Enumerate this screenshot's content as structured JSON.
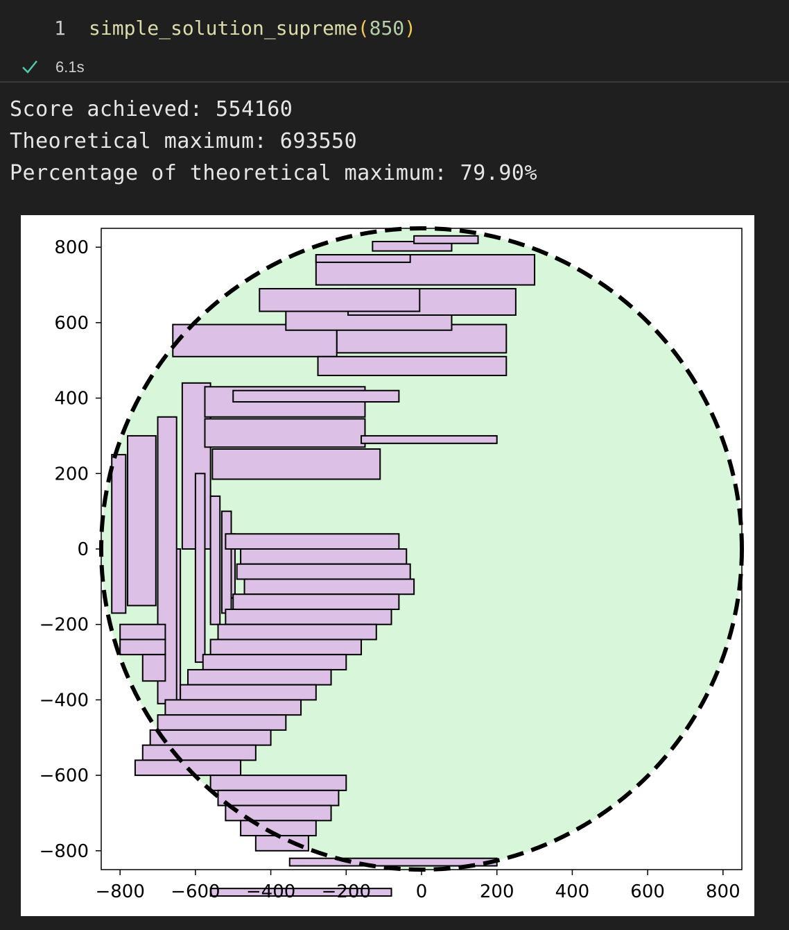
{
  "cell": {
    "line_number": "1",
    "function_name": "simple_solution_supreme",
    "open_paren": "(",
    "argument": "850",
    "close_paren": ")",
    "status_icon": "checkmark-icon",
    "execution_time": "6.1s"
  },
  "output": {
    "lines": [
      "Score achieved: 554160",
      "Theoretical maximum: 693550",
      "Percentage of theoretical maximum: 79.90%"
    ]
  },
  "colors": {
    "background": "#1f1f1f",
    "rect_fill": "#dcc0e6",
    "circle_fill": "#d8f7da",
    "check": "#4ec9b0"
  },
  "chart_data": {
    "type": "scatter",
    "title": "",
    "xlabel": "",
    "ylabel": "",
    "xlim": [
      -850,
      850
    ],
    "ylim": [
      -850,
      850
    ],
    "x_ticks": [
      -800,
      -600,
      -400,
      -200,
      0,
      200,
      400,
      600,
      800
    ],
    "y_ticks": [
      -800,
      -600,
      -400,
      -200,
      0,
      200,
      400,
      600,
      800
    ],
    "circle": {
      "center": [
        0,
        0
      ],
      "radius": 850,
      "style": "dashed"
    },
    "grid": false,
    "legend": "none",
    "note_rects": "rectangles as [x0, y0, x1, y1] in data units",
    "rects": [
      [
        -635,
        0,
        -560,
        440
      ],
      [
        -780,
        -150,
        -705,
        300
      ],
      [
        -822,
        -170,
        -785,
        250
      ],
      [
        -600,
        -300,
        -575,
        200
      ],
      [
        -560,
        -200,
        -535,
        140
      ],
      [
        -530,
        -170,
        -505,
        100
      ],
      [
        -505,
        -130,
        -495,
        40
      ],
      [
        -675,
        -450,
        -640,
        0
      ],
      [
        -700,
        -410,
        -650,
        350
      ],
      [
        -800,
        -240,
        -680,
        -200
      ],
      [
        -800,
        -280,
        -680,
        -240
      ],
      [
        -740,
        -350,
        -680,
        -280
      ],
      [
        -560,
        -920,
        -80,
        -900
      ],
      [
        -575,
        350,
        -150,
        430
      ],
      [
        -575,
        270,
        -150,
        345
      ],
      [
        -555,
        185,
        -110,
        265
      ],
      [
        -160,
        280,
        200,
        300
      ],
      [
        -225,
        520,
        225,
        595
      ],
      [
        -660,
        510,
        -225,
        595
      ],
      [
        -360,
        580,
        80,
        650
      ],
      [
        -275,
        460,
        225,
        510
      ],
      [
        -195,
        620,
        250,
        690
      ],
      [
        -430,
        630,
        -5,
        690
      ],
      [
        -280,
        700,
        300,
        780
      ],
      [
        -130,
        790,
        80,
        815
      ],
      [
        -20,
        810,
        150,
        830
      ],
      [
        -280,
        760,
        -30,
        780
      ],
      [
        -500,
        390,
        -60,
        420
      ],
      [
        -520,
        0,
        -60,
        40
      ],
      [
        -480,
        -40,
        -40,
        0
      ],
      [
        -490,
        -80,
        -30,
        -40
      ],
      [
        -470,
        -120,
        -20,
        -80
      ],
      [
        -500,
        -160,
        -60,
        -120
      ],
      [
        -520,
        -200,
        -80,
        -160
      ],
      [
        -540,
        -240,
        -120,
        -200
      ],
      [
        -560,
        -280,
        -160,
        -240
      ],
      [
        -580,
        -320,
        -200,
        -280
      ],
      [
        -620,
        -360,
        -240,
        -320
      ],
      [
        -640,
        -400,
        -280,
        -360
      ],
      [
        -680,
        -440,
        -320,
        -400
      ],
      [
        -700,
        -480,
        -360,
        -440
      ],
      [
        -720,
        -520,
        -400,
        -480
      ],
      [
        -740,
        -560,
        -440,
        -520
      ],
      [
        -760,
        -600,
        -480,
        -560
      ],
      [
        -560,
        -640,
        -200,
        -600
      ],
      [
        -540,
        -680,
        -220,
        -640
      ],
      [
        -520,
        -720,
        -240,
        -680
      ],
      [
        -480,
        -760,
        -280,
        -720
      ],
      [
        -440,
        -800,
        -300,
        -760
      ],
      [
        -350,
        -840,
        200,
        -820
      ]
    ]
  }
}
